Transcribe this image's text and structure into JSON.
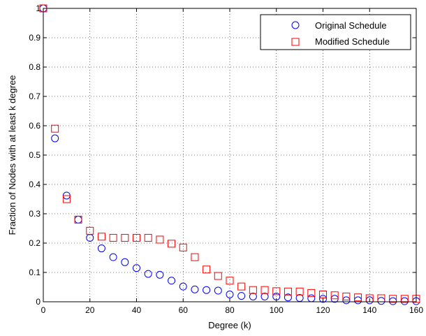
{
  "chart_data": {
    "type": "scatter",
    "title": "",
    "xlabel": "Degree (k)",
    "ylabel": "Fraction of Nodes with at least k degree",
    "xlim": [
      0,
      160
    ],
    "ylim": [
      0,
      1
    ],
    "xticks": [
      0,
      20,
      40,
      60,
      80,
      100,
      120,
      140,
      160
    ],
    "yticks": [
      0,
      0.1,
      0.2,
      0.3,
      0.4,
      0.5,
      0.6,
      0.7,
      0.8,
      0.9,
      1
    ],
    "grid": true,
    "legend_position": "top-right",
    "series": [
      {
        "name": "Original Schedule",
        "marker": "circle",
        "color": "#0000ff",
        "x": [
          0,
          5,
          10,
          15,
          20,
          25,
          30,
          35,
          40,
          45,
          50,
          55,
          60,
          65,
          70,
          75,
          80,
          85,
          90,
          95,
          100,
          105,
          110,
          115,
          120,
          125,
          130,
          135,
          140,
          145,
          150,
          155,
          160
        ],
        "y": [
          1.0,
          0.557,
          0.362,
          0.28,
          0.218,
          0.182,
          0.152,
          0.135,
          0.115,
          0.095,
          0.092,
          0.072,
          0.052,
          0.042,
          0.04,
          0.038,
          0.025,
          0.02,
          0.018,
          0.018,
          0.018,
          0.015,
          0.013,
          0.012,
          0.01,
          0.01,
          0.005,
          0.005,
          0.005,
          0.003,
          0.002,
          0.002,
          0.002
        ]
      },
      {
        "name": "Modified Schedule",
        "marker": "square",
        "color": "#ff0000",
        "x": [
          0,
          5,
          10,
          15,
          20,
          25,
          30,
          35,
          40,
          45,
          50,
          55,
          60,
          65,
          70,
          75,
          80,
          85,
          90,
          95,
          100,
          105,
          110,
          115,
          120,
          125,
          130,
          135,
          140,
          145,
          150,
          155,
          160
        ],
        "y": [
          1.0,
          0.59,
          0.35,
          0.28,
          0.242,
          0.222,
          0.218,
          0.218,
          0.218,
          0.218,
          0.212,
          0.198,
          0.185,
          0.152,
          0.11,
          0.088,
          0.072,
          0.052,
          0.04,
          0.04,
          0.036,
          0.035,
          0.035,
          0.03,
          0.025,
          0.022,
          0.018,
          0.015,
          0.012,
          0.012,
          0.01,
          0.01,
          0.01
        ]
      }
    ]
  }
}
